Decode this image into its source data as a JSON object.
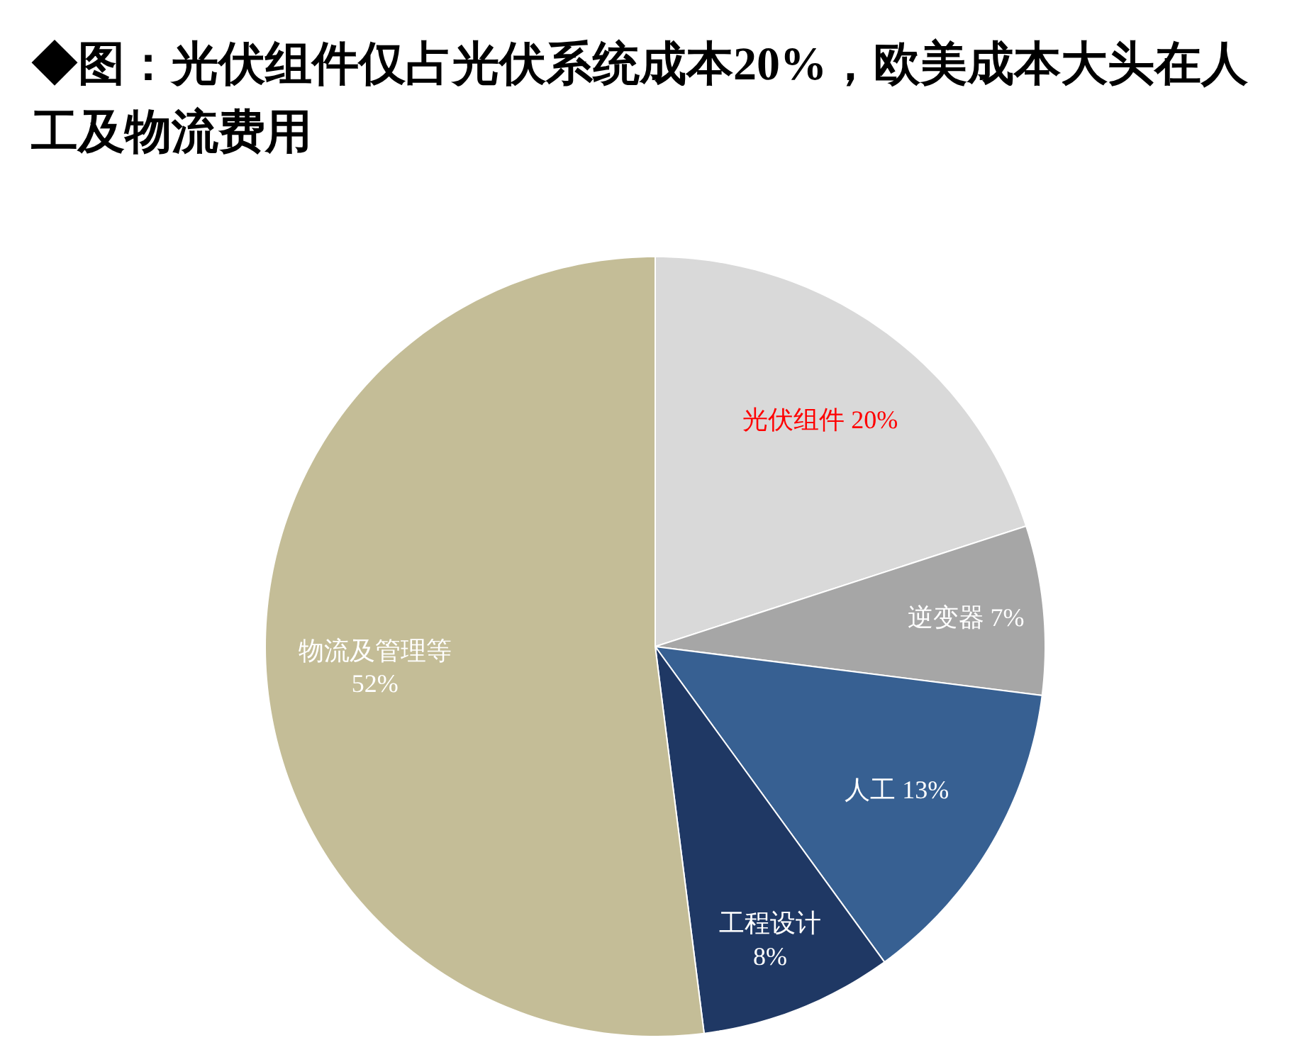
{
  "chart_data": {
    "type": "pie",
    "title": "◆图：光伏组件仅占光伏系统成本20%，欧美成本大头在人工及物流费用",
    "categories": [
      "光伏组件",
      "逆变器",
      "人工",
      "工程设计",
      "物流及管理等"
    ],
    "values": [
      20,
      7,
      13,
      8,
      52
    ],
    "value_labels": [
      "20%",
      "7%",
      "13%",
      "8%",
      "52%"
    ],
    "colors": [
      "#d9d9d9",
      "#a6a6a6",
      "#376092",
      "#1f3864",
      "#c4bd97"
    ]
  }
}
